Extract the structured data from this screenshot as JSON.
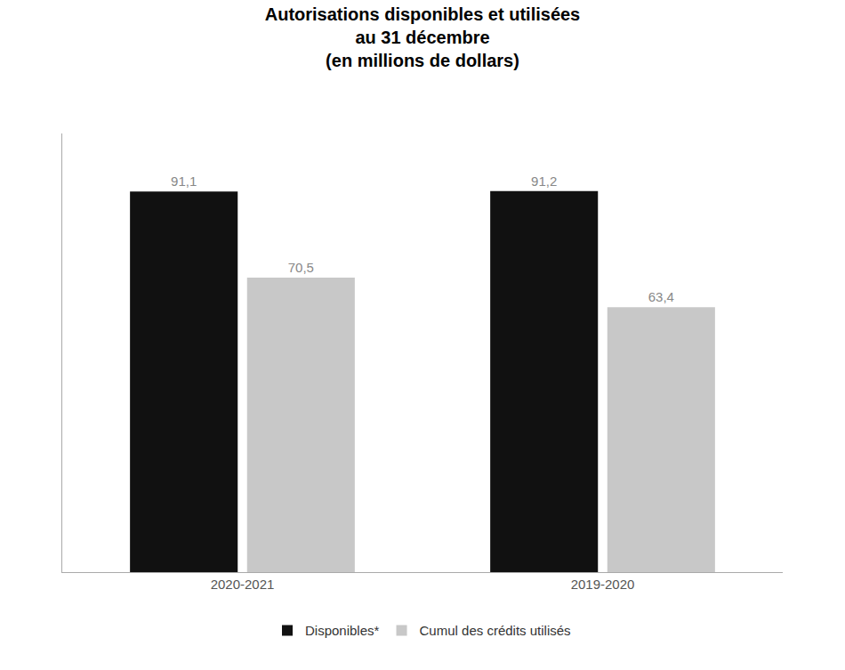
{
  "chart_data": {
    "type": "bar",
    "title": "Autorisations disponibles et utilisées\nau 31 décembre\n(en millions de dollars)",
    "categories": [
      "2020-2021",
      "2019-2020"
    ],
    "series": [
      {
        "name": "Disponibles*",
        "color": "#111111",
        "values": [
          91.1,
          91.2
        ],
        "value_labels": [
          "91,1",
          "91,2"
        ]
      },
      {
        "name": "Cumul des crédits utilisés",
        "color": "#c8c8c8",
        "values": [
          70.5,
          63.4
        ],
        "value_labels": [
          "70,5",
          "63,4"
        ]
      }
    ],
    "ylim": [
      0,
      105
    ],
    "grid": false,
    "legend": "bottom",
    "data_labels": true,
    "tick_labels": "x"
  }
}
